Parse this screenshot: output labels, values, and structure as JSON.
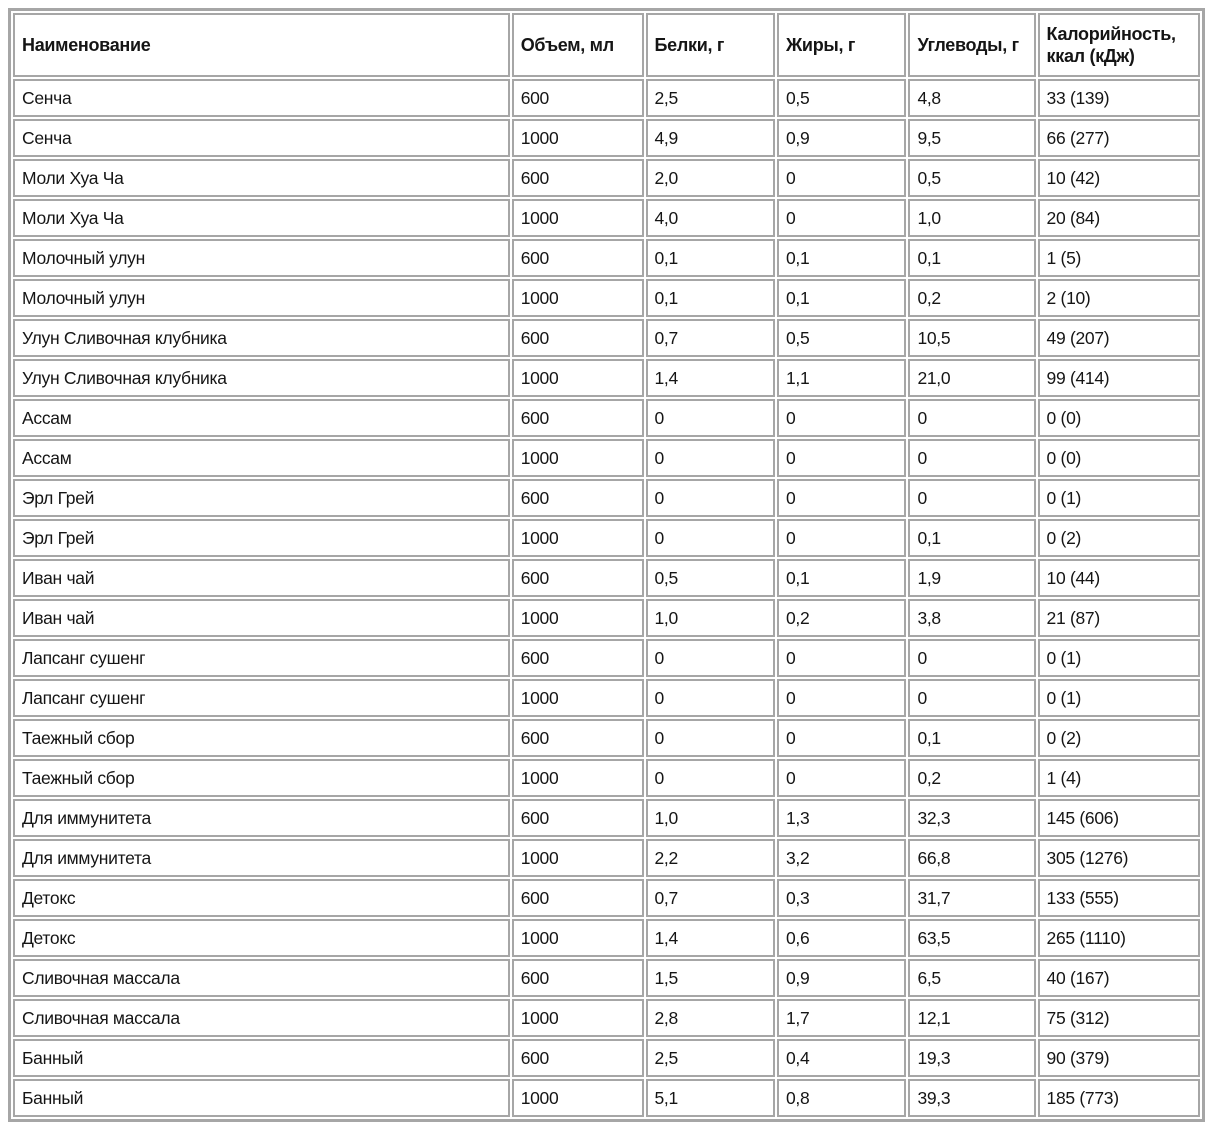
{
  "table": {
    "columns": [
      "Наименование",
      "Объем, мл",
      "Белки, г",
      "Жиры, г",
      "Углеводы, г",
      "Калорийность, ккал (кДж)"
    ],
    "rows": [
      [
        "Сенча",
        "600",
        "2,5",
        "0,5",
        "4,8",
        "33 (139)"
      ],
      [
        "Сенча",
        "1000",
        "4,9",
        "0,9",
        "9,5",
        "66 (277)"
      ],
      [
        "Моли Хуа Ча",
        "600",
        "2,0",
        "0",
        "0,5",
        "10 (42)"
      ],
      [
        "Моли Хуа Ча",
        "1000",
        "4,0",
        "0",
        "1,0",
        "20 (84)"
      ],
      [
        "Молочный улун",
        "600",
        "0,1",
        "0,1",
        "0,1",
        "1 (5)"
      ],
      [
        "Молочный улун",
        "1000",
        "0,1",
        "0,1",
        "0,2",
        "2 (10)"
      ],
      [
        "Улун Сливочная клубника",
        "600",
        "0,7",
        "0,5",
        "10,5",
        "49 (207)"
      ],
      [
        "Улун Сливочная клубника",
        "1000",
        "1,4",
        "1,1",
        "21,0",
        "99 (414)"
      ],
      [
        "Ассам",
        "600",
        "0",
        "0",
        "0",
        "0 (0)"
      ],
      [
        "Ассам",
        "1000",
        "0",
        "0",
        "0",
        "0 (0)"
      ],
      [
        "Эрл Грей",
        "600",
        "0",
        "0",
        "0",
        "0 (1)"
      ],
      [
        "Эрл Грей",
        "1000",
        "0",
        "0",
        "0,1",
        "0 (2)"
      ],
      [
        "Иван чай",
        "600",
        "0,5",
        "0,1",
        "1,9",
        "10 (44)"
      ],
      [
        "Иван чай",
        "1000",
        "1,0",
        "0,2",
        "3,8",
        "21 (87)"
      ],
      [
        "Лапсанг сушенг",
        "600",
        "0",
        "0",
        "0",
        "0 (1)"
      ],
      [
        "Лапсанг сушенг",
        "1000",
        "0",
        "0",
        "0",
        "0 (1)"
      ],
      [
        "Таежный сбор",
        "600",
        "0",
        "0",
        "0,1",
        "0 (2)"
      ],
      [
        "Таежный сбор",
        "1000",
        "0",
        "0",
        "0,2",
        "1 (4)"
      ],
      [
        "Для иммунитета",
        "600",
        "1,0",
        "1,3",
        "32,3",
        "145 (606)"
      ],
      [
        "Для иммунитета",
        "1000",
        "2,2",
        "3,2",
        "66,8",
        "305 (1276)"
      ],
      [
        "Детокс",
        "600",
        "0,7",
        "0,3",
        "31,7",
        "133 (555)"
      ],
      [
        "Детокс",
        "1000",
        "1,4",
        "0,6",
        "63,5",
        "265 (1110)"
      ],
      [
        "Сливочная массала",
        "600",
        "1,5",
        "0,9",
        "6,5",
        "40 (167)"
      ],
      [
        "Сливочная массала",
        "1000",
        "2,8",
        "1,7",
        "12,1",
        "75 (312)"
      ],
      [
        "Банный",
        "600",
        "2,5",
        "0,4",
        "19,3",
        "90 (379)"
      ],
      [
        "Банный",
        "1000",
        "5,1",
        "0,8",
        "39,3",
        "185 (773)"
      ]
    ],
    "border_color": "#a6a6a6",
    "text_color": "#151515",
    "background_color": "#ffffff"
  }
}
